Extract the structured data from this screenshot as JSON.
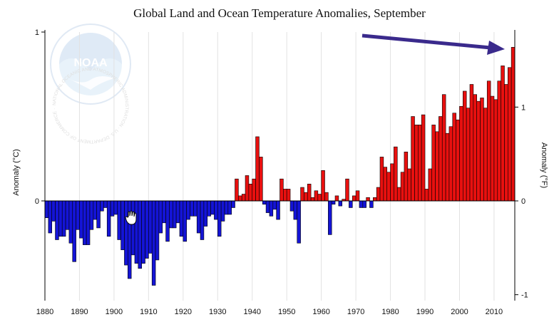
{
  "chart_data": {
    "type": "bar",
    "title": "Global Land and Ocean Temperature Anomalies, September",
    "ylabel_left": "Anomaly (°C)",
    "ylabel_right": "Anomaly (°F)",
    "x_ticks": [
      1880,
      1890,
      1900,
      1910,
      1920,
      1930,
      1940,
      1950,
      1960,
      1970,
      1980,
      1990,
      2000,
      2010
    ],
    "y_ticks_left": [
      "1",
      "0"
    ],
    "y_ticks_right": [
      "1",
      "0",
      "-1"
    ],
    "ylim_c": [
      -0.6,
      1.0
    ],
    "grid": "vertical",
    "positive_color": "#e8100f",
    "negative_color": "#1414d6",
    "arrow_color": "#3a2a8c",
    "logo": "NOAA",
    "logo_ring_text": "NATIONAL OCEANIC AND ATMOSPHERIC ADMINISTRATION · U.S. DEPARTMENT OF COMMERCE ·",
    "years": [
      1880,
      1881,
      1882,
      1883,
      1884,
      1885,
      1886,
      1887,
      1888,
      1889,
      1890,
      1891,
      1892,
      1893,
      1894,
      1895,
      1896,
      1897,
      1898,
      1899,
      1900,
      1901,
      1902,
      1903,
      1904,
      1905,
      1906,
      1907,
      1908,
      1909,
      1910,
      1911,
      1912,
      1913,
      1914,
      1915,
      1916,
      1917,
      1918,
      1919,
      1920,
      1921,
      1922,
      1923,
      1924,
      1925,
      1926,
      1927,
      1928,
      1929,
      1930,
      1931,
      1932,
      1933,
      1934,
      1935,
      1936,
      1937,
      1938,
      1939,
      1940,
      1941,
      1942,
      1943,
      1944,
      1945,
      1946,
      1947,
      1948,
      1949,
      1950,
      1951,
      1952,
      1953,
      1954,
      1955,
      1956,
      1957,
      1958,
      1959,
      1960,
      1961,
      1962,
      1963,
      1964,
      1965,
      1966,
      1967,
      1968,
      1969,
      1970,
      1971,
      1972,
      1973,
      1974,
      1975,
      1976,
      1977,
      1978,
      1979,
      1980,
      1981,
      1982,
      1983,
      1984,
      1985,
      1986,
      1987,
      1988,
      1989,
      1990,
      1991,
      1992,
      1993,
      1994,
      1995,
      1996,
      1997,
      1998,
      1999,
      2000,
      2001,
      2002,
      2003,
      2004,
      2005,
      2006,
      2007,
      2008,
      2009,
      2010,
      2011,
      2012,
      2013,
      2014,
      2015
    ],
    "values": [
      -0.1,
      -0.19,
      -0.12,
      -0.23,
      -0.21,
      -0.21,
      -0.17,
      -0.25,
      -0.36,
      -0.17,
      -0.22,
      -0.26,
      -0.26,
      -0.17,
      -0.11,
      -0.16,
      -0.06,
      -0.04,
      -0.21,
      -0.09,
      -0.08,
      -0.23,
      -0.29,
      -0.38,
      -0.46,
      -0.32,
      -0.37,
      -0.4,
      -0.37,
      -0.34,
      -0.31,
      -0.5,
      -0.35,
      -0.19,
      -0.13,
      -0.24,
      -0.16,
      -0.16,
      -0.13,
      -0.21,
      -0.24,
      -0.11,
      -0.09,
      -0.09,
      -0.19,
      -0.23,
      -0.15,
      -0.09,
      -0.08,
      -0.11,
      -0.21,
      -0.12,
      -0.08,
      -0.08,
      -0.04,
      0.13,
      0.03,
      0.04,
      0.15,
      0.1,
      0.13,
      0.38,
      0.26,
      -0.02,
      -0.07,
      -0.09,
      -0.05,
      -0.11,
      0.13,
      0.07,
      0.07,
      -0.06,
      -0.11,
      -0.25,
      0.08,
      0.05,
      0.1,
      0.02,
      0.06,
      0.04,
      0.18,
      0.05,
      -0.2,
      -0.02,
      0.03,
      -0.03,
      0.01,
      0.13,
      -0.04,
      0.03,
      0.06,
      -0.04,
      -0.04,
      0.02,
      -0.04,
      0.02,
      0.08,
      0.26,
      0.2,
      0.17,
      0.22,
      0.32,
      0.08,
      0.17,
      0.29,
      0.19,
      0.5,
      0.45,
      0.45,
      0.51,
      0.07,
      0.19,
      0.45,
      0.41,
      0.5,
      0.63,
      0.4,
      0.44,
      0.52,
      0.48,
      0.56,
      0.65,
      0.55,
      0.69,
      0.63,
      0.59,
      0.61,
      0.55,
      0.71,
      0.62,
      0.6,
      0.71,
      0.8,
      0.69,
      0.79,
      0.91
    ]
  }
}
